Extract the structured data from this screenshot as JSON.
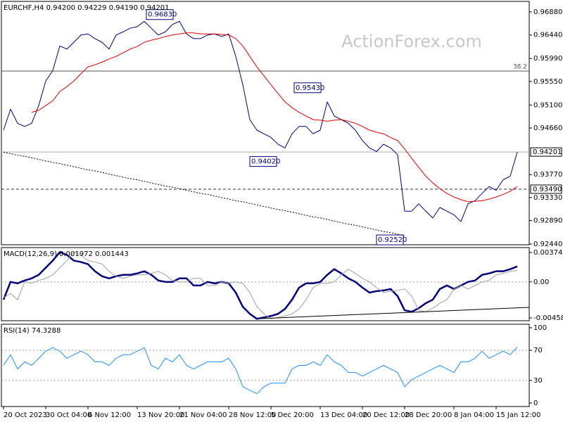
{
  "chart_data": [
    {
      "type": "line",
      "title": "EURCHF,H4  0.94200 0.94229 0.94190 0.94201",
      "watermark": "ActionForex.com",
      "categories": [
        "20 Oct 2023",
        null,
        null,
        null,
        null,
        null,
        "30 Oct 04:00",
        null,
        null,
        null,
        null,
        null,
        "6 Nov 12:00",
        null,
        null,
        null,
        null,
        null,
        null,
        "13 Nov 20:00",
        null,
        null,
        null,
        null,
        null,
        "21 Nov 04:00",
        null,
        null,
        null,
        null,
        null,
        null,
        "28 Nov 12:00",
        null,
        null,
        null,
        null,
        null,
        "5 Dec 20:00",
        null,
        null,
        null,
        null,
        null,
        null,
        "13 Dec 04:00",
        null,
        null,
        null,
        null,
        null,
        "20 Dec 12:00",
        null,
        null,
        null,
        null,
        null,
        "28 Dec 20:00",
        null,
        null,
        null,
        null,
        null,
        null,
        "8 Jan 04:00",
        null,
        null,
        null,
        null,
        null,
        "15 Jan 12:00",
        null,
        null,
        null
      ],
      "series": [
        {
          "color": "#00007a",
          "values": [
            0.9462,
            0.9502,
            0.9475,
            0.9469,
            0.9475,
            0.9509,
            0.9556,
            0.9576,
            0.9623,
            0.9617,
            0.963,
            0.9644,
            0.9646,
            0.9637,
            0.963,
            0.9617,
            0.9644,
            0.965,
            0.9657,
            0.966,
            0.967,
            0.9657,
            0.9644,
            0.965,
            0.9664,
            0.967,
            0.9646,
            0.9637,
            0.9637,
            0.9644,
            0.9646,
            0.9641,
            0.9646,
            0.9603,
            0.9549,
            0.9482,
            0.9462,
            0.9455,
            0.9448,
            0.9435,
            0.9428,
            0.9455,
            0.9469,
            0.9469,
            0.9455,
            0.9462,
            0.9516,
            0.9489,
            0.9482,
            0.9475,
            0.9462,
            0.9442,
            0.9428,
            0.9421,
            0.9435,
            0.9428,
            0.9415,
            0.9307,
            0.9307,
            0.9321,
            0.9307,
            0.9294,
            0.9314,
            0.9307,
            0.93,
            0.9287,
            0.9321,
            0.9327,
            0.9341,
            0.9354,
            0.9347,
            0.9367,
            0.9374,
            0.942
          ]
        },
        {
          "color": "#e00000",
          "values": [
            null,
            null,
            null,
            null,
            0.9496,
            0.95,
            0.9509,
            0.9518,
            0.9536,
            0.9545,
            0.9556,
            0.957,
            0.9583,
            0.9587,
            0.9592,
            0.9598,
            0.9603,
            0.961,
            0.9617,
            0.9622,
            0.963,
            0.9634,
            0.9637,
            0.9641,
            0.9644,
            0.9646,
            0.9648,
            0.9648,
            0.9646,
            0.9646,
            0.9646,
            0.9645,
            0.9644,
            0.9637,
            0.9623,
            0.9603,
            0.9583,
            0.9566,
            0.9549,
            0.9532,
            0.9516,
            0.9505,
            0.9496,
            0.9489,
            0.9482,
            0.9481,
            0.9479,
            0.9481,
            0.9482,
            0.9479,
            0.9475,
            0.9469,
            0.9462,
            0.9458,
            0.9455,
            0.9448,
            0.9442,
            0.9426,
            0.9408,
            0.9391,
            0.9374,
            0.9361,
            0.935,
            0.9341,
            0.9334,
            0.9329,
            0.9325,
            0.9326,
            0.9327,
            0.933,
            0.9334,
            0.9339,
            0.9345,
            0.9354
          ]
        },
        {
          "color": "#000000",
          "style": "dotted",
          "values": [
            0.942,
            0.9417,
            0.9414,
            0.9412,
            0.9409,
            0.9406,
            0.9403,
            0.94,
            0.9398,
            0.9395,
            0.9392,
            0.9389,
            0.9386,
            0.9384,
            0.9381,
            0.9378,
            0.9375,
            0.9372,
            0.9369,
            0.9367,
            0.9364,
            0.9361,
            0.9358,
            0.9355,
            0.9353,
            0.935,
            0.9347,
            0.9344,
            0.9341,
            0.9339,
            0.9336,
            0.9333,
            0.933,
            0.9327,
            0.9325,
            0.9322,
            0.9319,
            0.9316,
            0.9313,
            0.931,
            0.9308,
            0.9305,
            0.9302,
            0.9299,
            0.9296,
            0.9294,
            0.9291,
            0.9288,
            0.9285,
            0.9282,
            0.928,
            0.9277,
            0.9274,
            0.9271,
            0.9268,
            0.9266,
            0.9263,
            0.926,
            null,
            null,
            null,
            null,
            null,
            null,
            null,
            null,
            null,
            null,
            null,
            null,
            null,
            null,
            null,
            null
          ]
        }
      ],
      "ylim": [
        0.92427,
        0.97082
      ],
      "yticks": [
        {
          "value": 0.9688,
          "label": "0.96880"
        },
        {
          "value": 0.9644,
          "label": "0.96440"
        },
        {
          "value": 0.9599,
          "label": "0.95990"
        },
        {
          "value": 0.9555,
          "label": "0.95550"
        },
        {
          "value": 0.951,
          "label": "0.95100"
        },
        {
          "value": 0.9466,
          "label": "0.94660"
        },
        {
          "value": 0.9377,
          "label": "0.93770"
        },
        {
          "value": 0.9333,
          "label": "0.93330"
        },
        {
          "value": 0.9289,
          "label": "0.92890"
        },
        {
          "value": 0.9244,
          "label": "0.92440"
        }
      ],
      "last_price": 0.94201,
      "support": {
        "value": 0.9349,
        "label": "0.93490"
      },
      "fib": {
        "ratio": 38.2,
        "price": 0.9575
      },
      "annotations": [
        {
          "value": 0.9683,
          "label": "0.96830"
        },
        {
          "value": 0.9543,
          "label": "0.95430"
        },
        {
          "value": 0.9402,
          "label": "0.94020"
        },
        {
          "value": 0.9252,
          "label": "0.92520"
        }
      ]
    },
    {
      "type": "line",
      "title": "MACD(12,26,9) 0.001972 0.001443",
      "series": [
        {
          "color": "#00007a",
          "style": "bold",
          "values": [
            -0.002263,
            0,
            -0.000181,
            0.000181,
            0.000453,
            0.000905,
            0.00181,
            0.002715,
            0.003801,
            0.003439,
            0.002715,
            0.002534,
            0.002263,
            0.001358,
            0.000724,
            0.000453,
            0.000724,
            0.000905,
            0.000905,
            0.001086,
            0.001358,
            0.000905,
            0.000181,
            0,
            0,
            0.000453,
            0.000453,
            -0.000453,
            -0.000453,
            0,
            -0.000181,
            0,
            -0.000181,
            -0.001358,
            -0.003168,
            -0.004073,
            -0.004706,
            -0.004525,
            -0.004344,
            -0.004073,
            -0.003439,
            -0.002263,
            -0.000724,
            -0.000181,
            -0.000181,
            0,
            0.000905,
            0.001629,
            0.001086,
            0.000453,
            0,
            -0.000724,
            -0.001358,
            -0.001177,
            -0.001086,
            -0.000905,
            -0.00181,
            -0.00362,
            -0.003801,
            -0.003349,
            -0.002715,
            -0.002263,
            -0.000905,
            -0.000453,
            -0.000905,
            -0.000453,
            0,
            0.000181,
            0.000905,
            0.001086,
            0.001358,
            0.001358,
            0.001629,
            0.001972
          ]
        },
        {
          "color": "#a0a0a0",
          "values": [
            -0.002,
            -0.0015,
            -0.002263,
            0,
            -0.000181,
            0.000181,
            0.000453,
            0.000905,
            0.00181,
            0.002715,
            0.003801,
            0.003439,
            0.002715,
            0.002534,
            0.002263,
            0.001358,
            0.000724,
            0.000453,
            0.000724,
            0.000905,
            0.000905,
            0.001086,
            0.001358,
            0.000905,
            0.000181,
            0,
            0,
            0.000453,
            0.000453,
            -0.000453,
            -0.000453,
            0,
            -0.000181,
            0,
            -0.000181,
            -0.001358,
            -0.003168,
            -0.004073,
            -0.004706,
            -0.004525,
            -0.004344,
            -0.004073,
            -0.003439,
            -0.002263,
            -0.000724,
            -0.000181,
            -0.000181,
            0,
            0.000905,
            0.001629,
            0.001086,
            0.000453,
            0,
            -0.000724,
            -0.001358,
            -0.001177,
            -0.001086,
            -0.000905,
            -0.00181,
            -0.00362,
            -0.003801,
            -0.003349,
            -0.002715,
            -0.002263,
            -0.000905,
            -0.000453,
            -0.000905,
            -0.000453,
            0,
            0.000181,
            0.000905,
            0.001086,
            0.001358,
            0.001443
          ]
        }
      ],
      "ylim": [
        -0.004947,
        0.004377
      ],
      "yticks": [
        0.003743,
        {
          "value": 0,
          "label": "0.00"
        },
        -0.004585
      ],
      "hlines": [
        0
      ]
    },
    {
      "type": "line",
      "title": "RSI(14) 74.3288",
      "series": [
        {
          "color": "#1e90ff",
          "values": [
            50.0,
            64.2,
            45.3,
            54.7,
            50.0,
            59.4,
            68.9,
            73.6,
            68.9,
            59.4,
            64.2,
            68.9,
            64.2,
            54.7,
            54.7,
            50.0,
            59.4,
            64.2,
            64.2,
            68.9,
            73.6,
            50.0,
            45.3,
            59.4,
            54.7,
            64.2,
            50.0,
            45.3,
            50.0,
            54.7,
            54.7,
            54.7,
            59.4,
            45.3,
            21.7,
            17.0,
            12.3,
            21.7,
            26.4,
            26.4,
            26.4,
            45.3,
            50.0,
            50.0,
            54.7,
            50.0,
            64.2,
            54.7,
            50.0,
            40.6,
            40.6,
            35.8,
            40.6,
            45.3,
            50.0,
            45.3,
            40.6,
            21.7,
            31.1,
            35.8,
            40.6,
            45.3,
            50.0,
            45.3,
            40.6,
            54.7,
            54.7,
            59.4,
            68.9,
            59.4,
            64.2,
            68.9,
            64.2,
            74.3288
          ]
        }
      ],
      "ylim": [
        -4.7,
        104.7
      ],
      "yticks": [
        100,
        70,
        30,
        0
      ],
      "hlines": [
        70,
        30
      ]
    }
  ]
}
